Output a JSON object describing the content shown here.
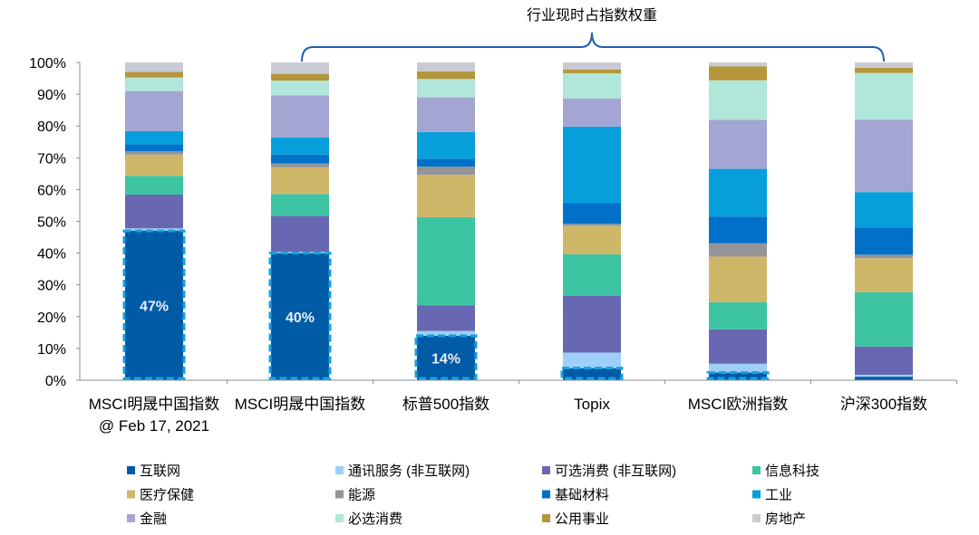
{
  "chart_data": {
    "type": "bar",
    "stacked": true,
    "annotation": "行业现时占指数权重",
    "categories": [
      [
        "MSCI明晟中国指数",
        "@ Feb 17, 2021"
      ],
      [
        "MSCI明晟中国指数"
      ],
      [
        "标普500指数"
      ],
      [
        "Topix"
      ],
      [
        "MSCI欧洲指数"
      ],
      [
        "沪深300指数"
      ]
    ],
    "ylim": [
      0,
      100
    ],
    "yticks": [
      "0%",
      "10%",
      "20%",
      "30%",
      "40%",
      "50%",
      "60%",
      "70%",
      "80%",
      "90%",
      "100%"
    ],
    "highlight_labels": [
      "47%",
      "40%",
      "14%",
      "",
      "",
      ""
    ],
    "highlighted_bars": [
      true,
      true,
      true,
      true,
      true,
      false
    ],
    "legend_position": "bottom",
    "series": [
      {
        "name": "互联网",
        "color": "#005BA6",
        "values": [
          47,
          40,
          14,
          3.8,
          2.4,
          1.1
        ]
      },
      {
        "name": "通讯服务 (非互联网)",
        "color": "#9DCFF8",
        "values": [
          0.8,
          0.4,
          1.5,
          4.9,
          2.8,
          0.6
        ]
      },
      {
        "name": "可选消费 (非互联网)",
        "color": "#6868B2",
        "values": [
          10.6,
          11.3,
          8.0,
          17.9,
          10.8,
          8.9
        ]
      },
      {
        "name": "信息科技",
        "color": "#3DC4A2",
        "values": [
          5.9,
          6.9,
          27.8,
          13.0,
          8.5,
          17.1
        ]
      },
      {
        "name": "医疗保健",
        "color": "#CFB76A",
        "values": [
          6.7,
          8.4,
          13.3,
          9.0,
          14.4,
          10.7
        ]
      },
      {
        "name": "能源",
        "color": "#939598",
        "values": [
          1.1,
          1.2,
          2.6,
          0.6,
          4.2,
          1.1
        ]
      },
      {
        "name": "基础材料",
        "color": "#0070C9",
        "values": [
          2.1,
          2.8,
          2.5,
          6.5,
          8.4,
          8.6
        ]
      },
      {
        "name": "工业",
        "color": "#069FDB",
        "values": [
          4.2,
          5.4,
          8.4,
          24.1,
          15.0,
          11.1
        ]
      },
      {
        "name": "金融",
        "color": "#A3A5D2",
        "values": [
          12.6,
          13.2,
          10.9,
          8.9,
          15.4,
          22.8
        ]
      },
      {
        "name": "必选消费",
        "color": "#B1E6DA",
        "values": [
          4.3,
          4.7,
          5.8,
          7.9,
          12.5,
          14.7
        ]
      },
      {
        "name": "公用事业",
        "color": "#B5963A",
        "values": [
          1.7,
          2.1,
          2.4,
          1.2,
          4.4,
          1.6
        ]
      },
      {
        "name": "房地产",
        "color": "#C8CBD4",
        "values": [
          3.0,
          3.6,
          2.8,
          2.2,
          1.2,
          1.7
        ]
      }
    ]
  }
}
